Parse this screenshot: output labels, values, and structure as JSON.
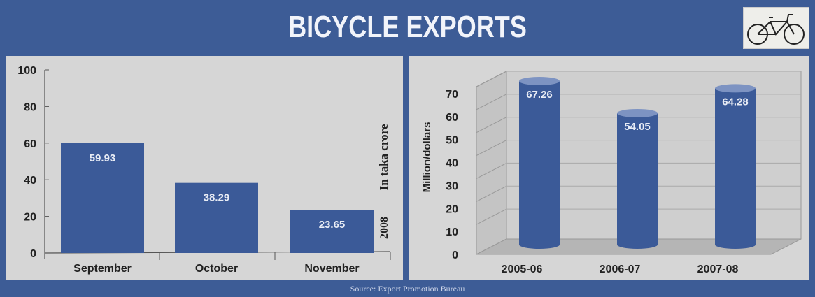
{
  "title": "BICYCLE EXPORTS",
  "source": "Source: Export Promotion Bureau",
  "colors": {
    "bar": "#3b5a98",
    "header": "#3d5c96",
    "panel": "#d6d6d6"
  },
  "chart_data": [
    {
      "type": "bar",
      "categories": [
        "September",
        "October",
        "November"
      ],
      "values": [
        59.93,
        38.29,
        23.65
      ],
      "labels": [
        "59.93",
        "38.29",
        "23.65"
      ],
      "ylabel": "In taka crore",
      "annotation": "2008",
      "ylim": [
        0,
        100
      ],
      "yticks": [
        "0",
        "20",
        "40",
        "60",
        "80",
        "100"
      ]
    },
    {
      "type": "bar",
      "style": "3d-cylinder",
      "categories": [
        "2005-06",
        "2006-07",
        "2007-08"
      ],
      "values": [
        67.26,
        54.05,
        64.28
      ],
      "labels": [
        "67.26",
        "54.05",
        "64.28"
      ],
      "ylabel": "Million/dollars",
      "ylim": [
        0,
        70
      ],
      "yticks": [
        "0",
        "10",
        "20",
        "30",
        "40",
        "50",
        "60",
        "70"
      ]
    }
  ]
}
